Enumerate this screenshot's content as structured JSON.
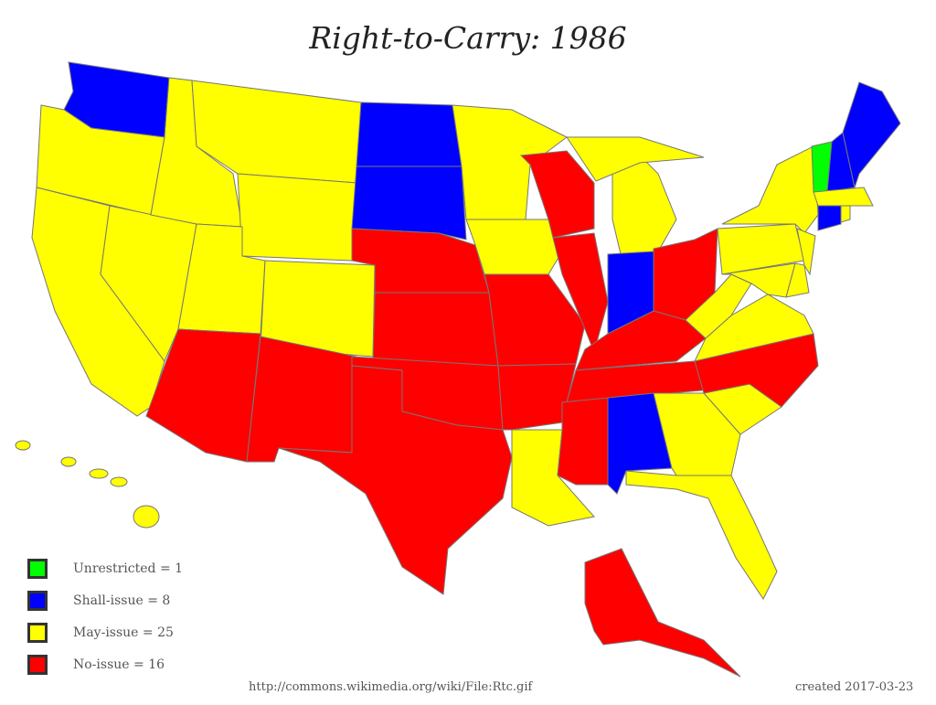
{
  "title": "Right-to-Carry: 1986",
  "colors": {
    "unrestricted": "#00ff00",
    "shall_issue": "#0000ff",
    "may_issue": "#ffff00",
    "no_issue": "#ff0000"
  },
  "legend": [
    {
      "key": "unrestricted",
      "label": "Unrestricted = 1"
    },
    {
      "key": "shall_issue",
      "label": "Shall-issue = 8"
    },
    {
      "key": "may_issue",
      "label": "May-issue = 25"
    },
    {
      "key": "no_issue",
      "label": "No-issue = 16"
    }
  ],
  "states": {
    "VT": "unrestricted",
    "WA": "shall_issue",
    "ND": "shall_issue",
    "SD": "shall_issue",
    "IN": "shall_issue",
    "AL": "shall_issue",
    "ME": "shall_issue",
    "NH": "shall_issue",
    "CT": "shall_issue",
    "WI": "no_issue",
    "IL": "no_issue",
    "NE": "no_issue",
    "KS": "no_issue",
    "MO": "no_issue",
    "OK": "no_issue",
    "TX": "no_issue",
    "NM": "no_issue",
    "AZ": "no_issue",
    "AR": "no_issue",
    "MS": "no_issue",
    "TN": "no_issue",
    "KY": "no_issue",
    "OH": "no_issue",
    "NC": "no_issue",
    "AK": "no_issue",
    "OR": "may_issue",
    "CA": "may_issue",
    "NV": "may_issue",
    "ID": "may_issue",
    "MT": "may_issue",
    "WY": "may_issue",
    "UT": "may_issue",
    "CO": "may_issue",
    "MN": "may_issue",
    "IA": "may_issue",
    "LA": "may_issue",
    "MI": "may_issue",
    "GA": "may_issue",
    "FL": "may_issue",
    "SC": "may_issue",
    "VA": "may_issue",
    "WV": "may_issue",
    "PA": "may_issue",
    "NY": "may_issue",
    "MD": "may_issue",
    "DE": "may_issue",
    "NJ": "may_issue",
    "MA": "may_issue",
    "RI": "may_issue",
    "HI": "may_issue"
  },
  "footer": {
    "source": "http://commons.wikimedia.org/wiki/File:Rtc.gif",
    "created": "created 2017-03-23"
  }
}
